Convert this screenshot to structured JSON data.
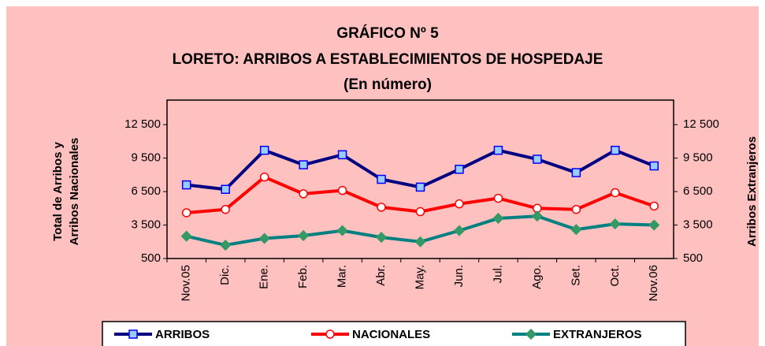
{
  "chart_data": {
    "type": "line",
    "title": "GRÁFICO Nº 5",
    "subtitle": "LORETO: ARRIBOS A ESTABLECIMIENTOS DE HOSPEDAJE",
    "note": "(En número)",
    "y_label": [
      "Total de Arribos y",
      "Arribos Nacionales"
    ],
    "y2_label": "Arribos Extranjeros",
    "categories": [
      "Nov.05",
      "Dic.",
      "Ene.",
      "Feb.",
      "Mar.",
      "Abr.",
      "May.",
      "Jun.",
      "Jul.",
      "Ago.",
      "Set.",
      "Oct.",
      "Nov.06"
    ],
    "series": [
      {
        "name": "ARRIBOS",
        "color": "#000080",
        "marker": "square",
        "marker_fill": "#99CCFF",
        "marker_stroke": "#0000FF",
        "values": [
          7100,
          6700,
          10200,
          8900,
          9800,
          7600,
          6900,
          8500,
          10200,
          9400,
          8200,
          10200,
          8800
        ]
      },
      {
        "name": "NACIONALES",
        "color": "#FF0000",
        "marker": "circle",
        "marker_fill": "#FFFFFF",
        "marker_stroke": "#FF0000",
        "values": [
          4600,
          4900,
          7800,
          6300,
          6600,
          5100,
          4700,
          5400,
          5900,
          5000,
          4900,
          6400,
          5200
        ]
      },
      {
        "name": "EXTRANJEROS",
        "color": "#008080",
        "marker": "diamond",
        "marker_fill": "#339966",
        "marker_stroke": "#339966",
        "axis": "y2",
        "values": [
          2500,
          1700,
          2300,
          2550,
          3000,
          2400,
          2000,
          3000,
          4100,
          4300,
          3100,
          3600,
          3500
        ]
      }
    ],
    "ylim": [
      500,
      14700
    ],
    "yticks": [
      500,
      {
        "value": 3500,
        "label": "3 500"
      },
      {
        "value": 6500,
        "label": "6 500"
      },
      {
        "value": 9500,
        "label": "9 500"
      },
      {
        "value": 12500,
        "label": "12 500"
      }
    ],
    "y2lim": [
      500,
      14700
    ],
    "y2ticks": [
      500,
      {
        "value": 3500,
        "label": "3 500"
      },
      {
        "value": 6500,
        "label": "6 500"
      },
      {
        "value": 9500,
        "label": "9 500"
      },
      {
        "value": 12500,
        "label": "12 500"
      }
    ],
    "background": "#FFC0C0",
    "legend": "bottom"
  }
}
